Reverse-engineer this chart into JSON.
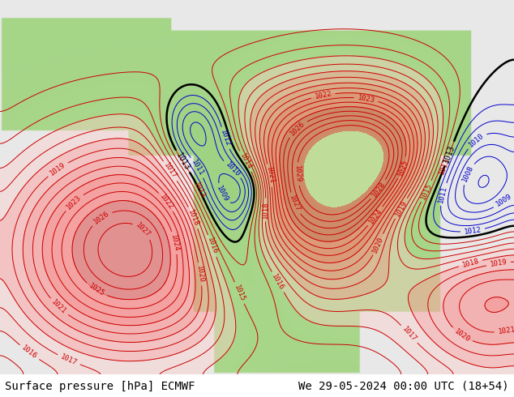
{
  "title_left": "Surface pressure [hPa] ECMWF",
  "title_right": "We 29-05-2024 00:00 UTC (18+54)",
  "title_fontsize": 10,
  "title_color": "#000000",
  "bg_color": "#ffffff",
  "footer_bg": "#ffffff",
  "fig_width": 6.34,
  "fig_height": 4.9,
  "dpi": 100,
  "land_color_high": "#aad4a0",
  "land_color_low": "#c8e6c8",
  "ocean_color": "#e8e8e8",
  "contour_red_color": "#cc0000",
  "contour_blue_color": "#0000cc",
  "contour_black_color": "#000000",
  "label_fontsize": 6.5,
  "pressure_min": 980,
  "pressure_max": 1030,
  "pressure_step": 1
}
